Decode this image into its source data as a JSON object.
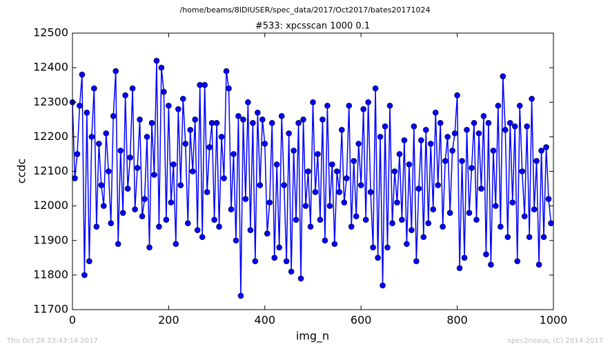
{
  "chart_data": {
    "type": "line",
    "suptitle": "/home/beams/8IDIUSER/spec_data/2017/Oct2017/bates20171024",
    "title": "#533: xpcsscan 1000 0.1",
    "xlabel": "img_n",
    "ylabel": "ccdc",
    "xlim": [
      0,
      1000
    ],
    "ylim": [
      11700,
      12500
    ],
    "xticks": [
      0,
      200,
      400,
      600,
      800,
      1000
    ],
    "yticks": [
      11700,
      11800,
      11900,
      12000,
      12100,
      12200,
      12300,
      12400,
      12500
    ],
    "grid": false,
    "x": [
      0,
      5,
      10,
      15,
      20,
      25,
      30,
      35,
      40,
      45,
      50,
      55,
      60,
      65,
      70,
      75,
      80,
      85,
      90,
      95,
      100,
      105,
      110,
      115,
      120,
      125,
      130,
      135,
      140,
      145,
      150,
      155,
      160,
      165,
      170,
      175,
      180,
      185,
      190,
      195,
      200,
      205,
      210,
      215,
      220,
      225,
      230,
      235,
      240,
      245,
      250,
      255,
      260,
      265,
      270,
      275,
      280,
      285,
      290,
      295,
      300,
      305,
      310,
      315,
      320,
      325,
      330,
      335,
      340,
      345,
      350,
      355,
      360,
      365,
      370,
      375,
      380,
      385,
      390,
      395,
      400,
      405,
      410,
      415,
      420,
      425,
      430,
      435,
      440,
      445,
      450,
      455,
      460,
      465,
      470,
      475,
      480,
      485,
      490,
      495,
      500,
      505,
      510,
      515,
      520,
      525,
      530,
      535,
      540,
      545,
      550,
      555,
      560,
      565,
      570,
      575,
      580,
      585,
      590,
      595,
      600,
      605,
      610,
      615,
      620,
      625,
      630,
      635,
      640,
      645,
      650,
      655,
      660,
      665,
      670,
      675,
      680,
      685,
      690,
      695,
      700,
      705,
      710,
      715,
      720,
      725,
      730,
      735,
      740,
      745,
      750,
      755,
      760,
      765,
      770,
      775,
      780,
      785,
      790,
      795,
      800,
      805,
      810,
      815,
      820,
      825,
      830,
      835,
      840,
      845,
      850,
      855,
      860,
      865,
      870,
      875,
      880,
      885,
      890,
      895,
      900,
      905,
      910,
      915,
      920,
      925,
      930,
      935,
      940,
      945,
      950,
      955,
      960,
      965,
      970,
      975,
      980,
      985,
      990,
      995
    ],
    "series": [
      {
        "color": "#0000ff",
        "values": [
          12300,
          12080,
          12150,
          12290,
          12380,
          11800,
          12270,
          11840,
          12200,
          12340,
          11940,
          12180,
          12060,
          12000,
          12210,
          12100,
          11950,
          12260,
          12390,
          11890,
          12160,
          11980,
          12320,
          12050,
          12140,
          12340,
          11990,
          12110,
          12250,
          11970,
          12020,
          12200,
          11880,
          12240,
          12090,
          12420,
          11940,
          12400,
          12330,
          11960,
          12290,
          12010,
          12120,
          11890,
          12280,
          12060,
          12310,
          12180,
          11950,
          12220,
          12100,
          12250,
          11930,
          12350,
          11910,
          12350,
          12040,
          12170,
          12240,
          11960,
          12240,
          11940,
          12200,
          12080,
          12390,
          12340,
          11990,
          12150,
          11900,
          12260,
          11740,
          12250,
          12020,
          12300,
          11930,
          12240,
          11840,
          12270,
          12060,
          12250,
          12180,
          11920,
          12010,
          12240,
          11850,
          12120,
          11880,
          12260,
          12060,
          11840,
          12210,
          11810,
          12160,
          11960,
          12240,
          11790,
          12250,
          12000,
          12100,
          11940,
          12300,
          12040,
          12150,
          11960,
          12250,
          11900,
          12290,
          12000,
          12120,
          11890,
          12100,
          12040,
          12220,
          12010,
          12080,
          12290,
          11940,
          12130,
          11970,
          12180,
          12060,
          12280,
          11960,
          12300,
          12040,
          11880,
          12340,
          11850,
          12200,
          11770,
          12230,
          11880,
          12290,
          11950,
          12100,
          12010,
          12150,
          11960,
          12190,
          11890,
          12120,
          11930,
          12230,
          11840,
          12050,
          12190,
          11910,
          12220,
          11950,
          12180,
          11990,
          12270,
          12060,
          12240,
          11940,
          12130,
          12200,
          11980,
          12160,
          12210,
          12320,
          11820,
          12130,
          11850,
          12220,
          11980,
          12110,
          12240,
          11960,
          12210,
          12050,
          12260,
          11860,
          12240,
          11830,
          12160,
          12000,
          12290,
          11940,
          12375,
          12220,
          11910,
          12240,
          12010,
          12230,
          11840,
          12290,
          12100,
          11970,
          12230,
          11910,
          12310,
          11990,
          12130,
          11830,
          12160,
          11910,
          12170,
          12020,
          11950
        ]
      }
    ]
  },
  "footer": {
    "timestamp": "Thu Oct 26 23:43:14 2017",
    "credit": "spec2nexus, (C) 2014-2017"
  }
}
